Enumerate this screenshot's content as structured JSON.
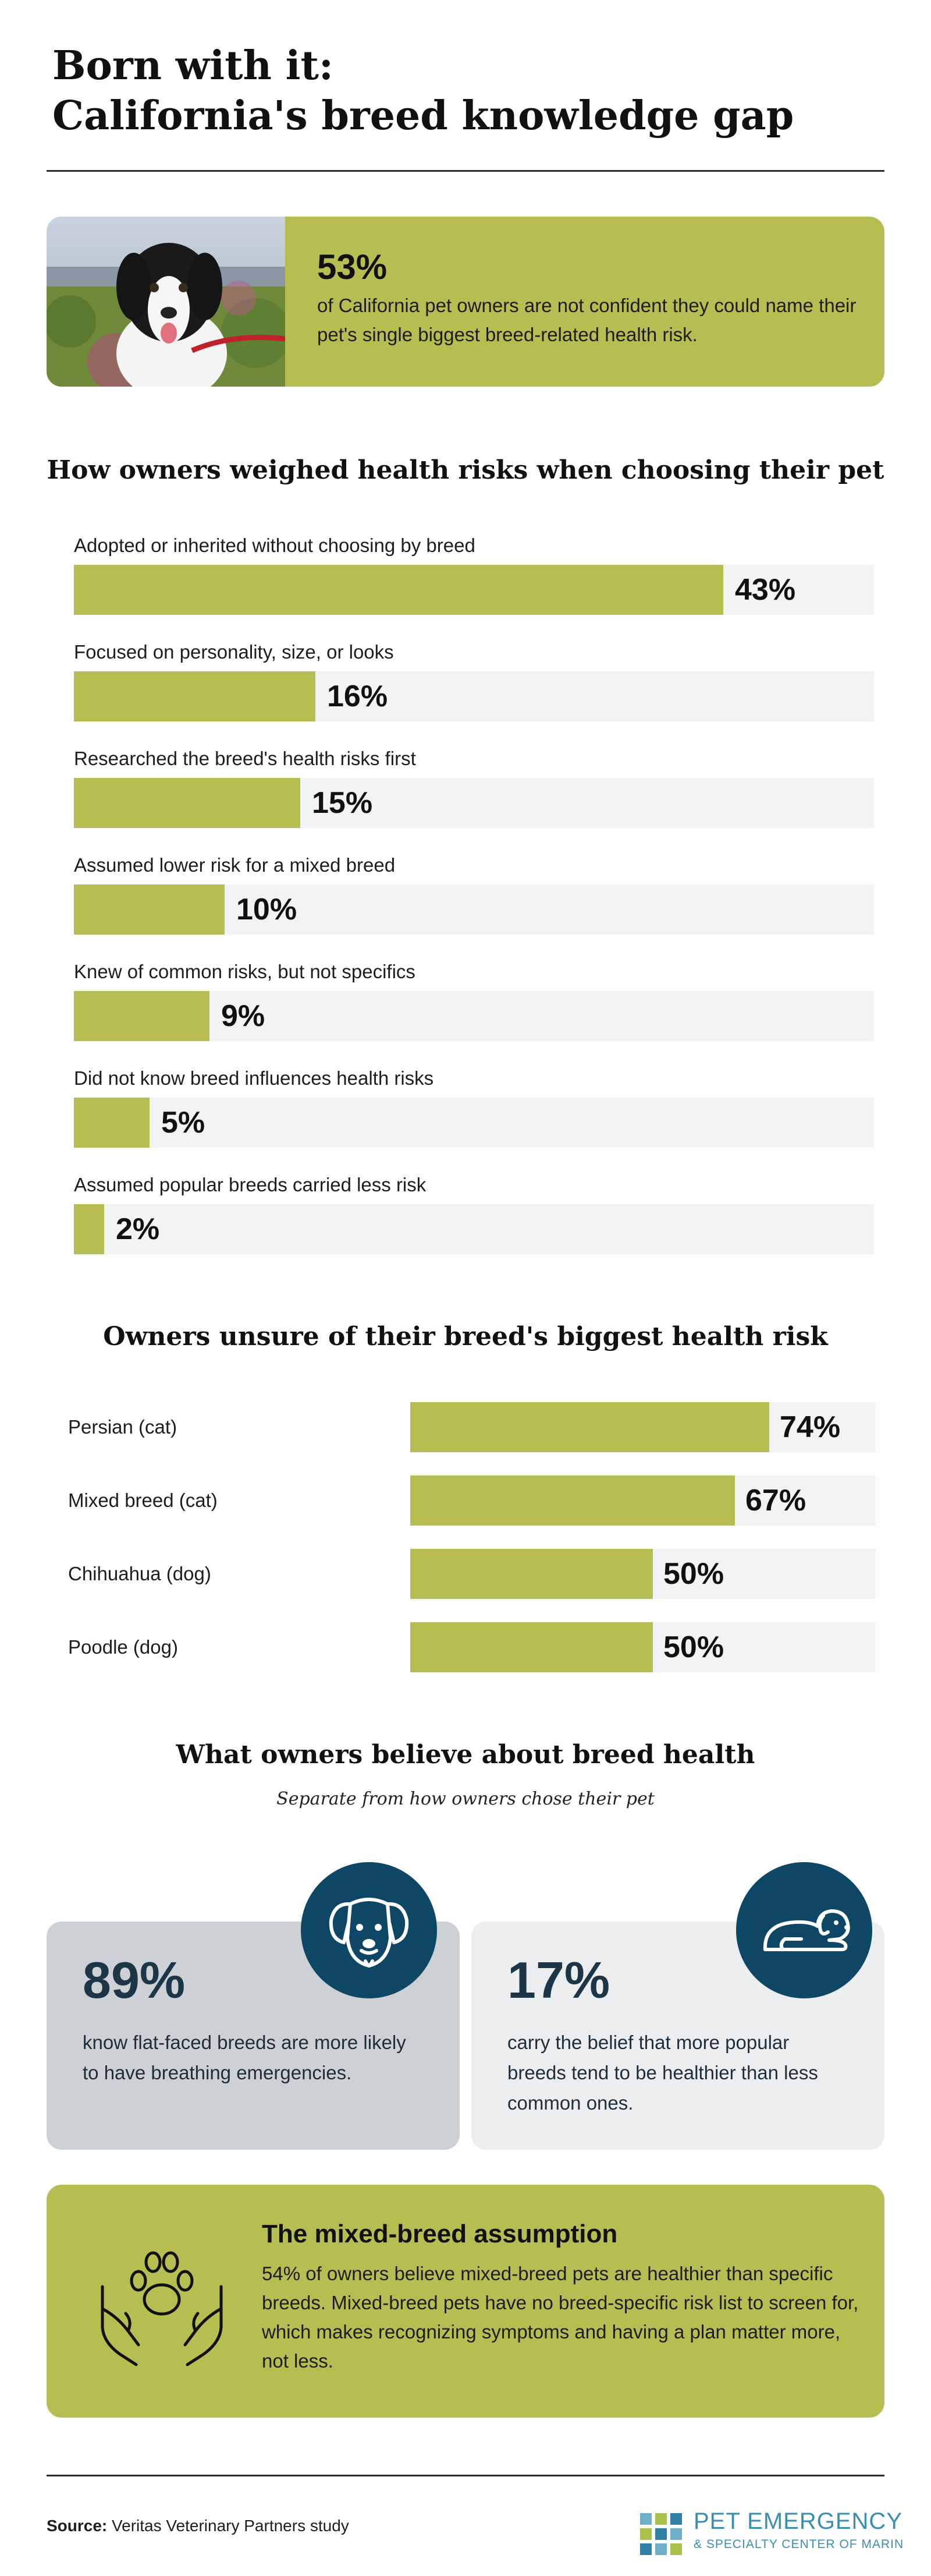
{
  "title": {
    "line1": "Born with it:",
    "line2": "California's breed knowledge gap"
  },
  "hero": {
    "stat": "53%",
    "text": "of California pet owners are not confident they could name their pet's single biggest breed-related health risk."
  },
  "chart_data": [
    {
      "type": "bar",
      "orientation": "horizontal",
      "title": "How owners weighed health risks when choosing their pet",
      "categories": [
        "Adopted or inherited without choosing by breed",
        "Focused on personality, size, or looks",
        "Researched the breed's health risks first",
        "Assumed lower risk for a mixed breed",
        "Knew of common risks, but not specifics",
        "Did not know breed influences health risks",
        "Assumed popular breeds carried less risk"
      ],
      "values": [
        43,
        16,
        15,
        10,
        9,
        5,
        2
      ],
      "labels": [
        "43%",
        "16%",
        "15%",
        "10%",
        "9%",
        "5%",
        "2%"
      ],
      "xlim": [
        0,
        53
      ]
    },
    {
      "type": "bar",
      "orientation": "horizontal",
      "title": "Owners unsure of their breed's biggest health risk",
      "categories": [
        "Persian (cat)",
        "Mixed breed (cat)",
        "Chihuahua (dog)",
        "Poodle (dog)"
      ],
      "values": [
        74,
        67,
        50,
        50
      ],
      "labels": [
        "74%",
        "67%",
        "50%",
        "50%"
      ],
      "xlim": [
        0,
        96
      ]
    }
  ],
  "beliefs": {
    "title": "What owners believe about breed health",
    "subtitle": "Separate from how owners chose their pet",
    "cards": [
      {
        "stat": "89%",
        "text": "know flat-faced breeds are more likely to have breathing emergencies.",
        "icon": "dog-face-icon",
        "bg": "#cdd0d4"
      },
      {
        "stat": "17%",
        "text": "carry the belief that more popular breeds tend to be healthier than less common ones.",
        "icon": "lying-dog-icon",
        "bg": "#ecedef"
      }
    ]
  },
  "mixed": {
    "title": "The mixed-breed assumption",
    "text": "54% of owners believe mixed-breed pets are healthier than specific breeds. Mixed-breed pets have no breed-specific risk list to screen for, which makes recognizing symptoms and having a plan matter more, not less."
  },
  "footer": {
    "source_label": "Source:",
    "source_text": "Veritas Veterinary Partners study",
    "logo_line1": "PET EMERGENCY",
    "logo_line2": "& SPECIALTY CENTER OF MARIN"
  },
  "colors": {
    "bar": "#b6bd51",
    "track": "#f2f3f5",
    "badge": "#0d4765",
    "logo": "#3a8fb0"
  }
}
